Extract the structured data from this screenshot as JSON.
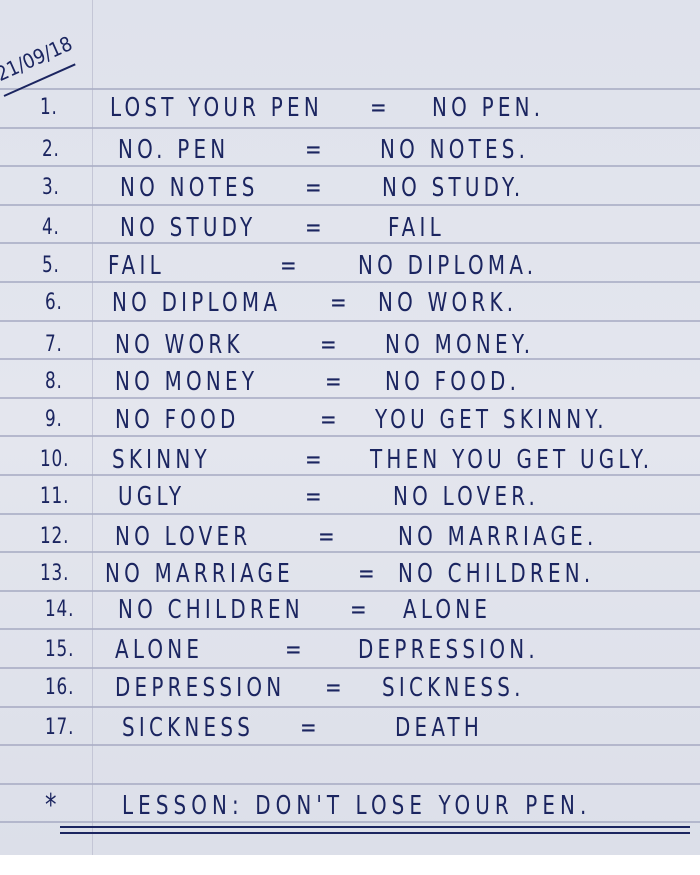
{
  "date": "21/09/18",
  "rows": [
    {
      "num": "1.",
      "left": "LOST YOUR PEN",
      "eq": "=",
      "right": "NO PEN."
    },
    {
      "num": "2.",
      "left": "NO. PEN",
      "eq": "=",
      "right": "NO NOTES."
    },
    {
      "num": "3.",
      "left": "NO NOTES",
      "eq": "=",
      "right": "NO STUDY."
    },
    {
      "num": "4.",
      "left": "NO STUDY",
      "eq": "=",
      "right": "FAIL"
    },
    {
      "num": "5.",
      "left": "FAIL",
      "eq": "=",
      "right": "NO DIPLOMA."
    },
    {
      "num": "6.",
      "left": "NO DIPLOMA",
      "eq": "=",
      "right": "NO WORK."
    },
    {
      "num": "7.",
      "left": "NO WORK",
      "eq": "=",
      "right": "NO MONEY."
    },
    {
      "num": "8.",
      "left": "NO MONEY",
      "eq": "=",
      "right": "NO FOOD."
    },
    {
      "num": "9.",
      "left": "NO FOOD",
      "eq": "=",
      "right": "YOU GET SKINNY."
    },
    {
      "num": "10.",
      "left": "SKINNY",
      "eq": "=",
      "right": "THEN YOU GET UGLY."
    },
    {
      "num": "11.",
      "left": "UGLY",
      "eq": "=",
      "right": "NO LOVER."
    },
    {
      "num": "12.",
      "left": "NO LOVER",
      "eq": "=",
      "right": "NO MARRIAGE."
    },
    {
      "num": "13.",
      "left": "NO MARRIAGE",
      "eq": "=",
      "right": "NO CHILDREN."
    },
    {
      "num": "14.",
      "left": "NO CHILDREN",
      "eq": "=",
      "right": "ALONE"
    },
    {
      "num": "15.",
      "left": "ALONE",
      "eq": "=",
      "right": "DEPRESSION."
    },
    {
      "num": "16.",
      "left": "DEPRESSION",
      "eq": "=",
      "right": "SICKNESS."
    },
    {
      "num": "17.",
      "left": "SICKNESS",
      "eq": "=",
      "right": "DEATH"
    }
  ],
  "lesson": {
    "star": "*",
    "text": "LESSON: DON'T LOSE YOUR PEN."
  },
  "colors": {
    "ink": "#1b2560",
    "paper": "#e0e3ec",
    "rules": "#a9adc4"
  }
}
